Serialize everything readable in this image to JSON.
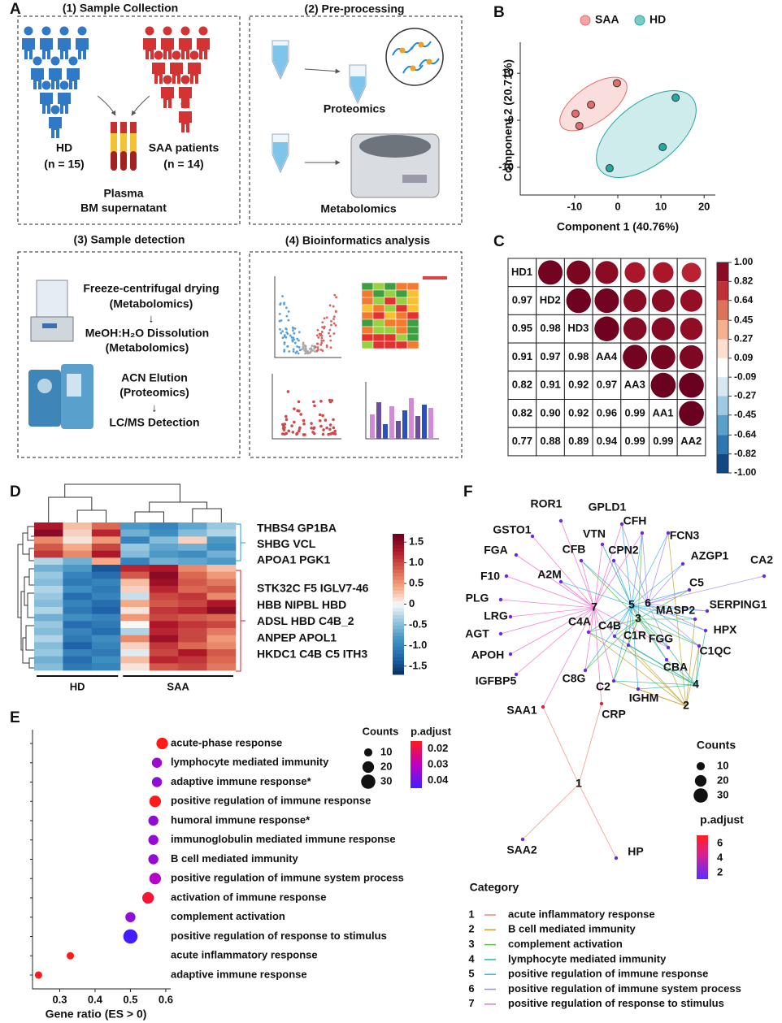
{
  "panel_letters": [
    "A",
    "B",
    "C",
    "D",
    "E",
    "F"
  ],
  "workflow": {
    "boxes": [
      {
        "title": "(1) Sample Collection",
        "texts": [
          "HD",
          "(n = 15)",
          "SAA patients",
          "(n = 14)",
          "Plasma",
          "BM supernatant"
        ]
      },
      {
        "title": "(2) Pre-processing",
        "texts": [
          "Proteomics",
          "Metabolomics"
        ]
      },
      {
        "title": "(3) Sample detection",
        "texts": [
          "Freeze-centrifugal drying",
          "(Metabolomics)",
          "↓",
          "MeOH:H₂O Dissolution",
          "(Metabolomics)",
          "ACN Elution",
          "(Proteomics)",
          "↓",
          "LC/MS Detection"
        ]
      },
      {
        "title": "(4) Bioinformatics analysis"
      }
    ]
  },
  "chart_data": [
    {
      "type": "scatter",
      "xlabel": "Component 1 (40.76%)",
      "ylabel": "Component 2 (20.71%)",
      "xlim": [
        -22.6,
        22.6
      ],
      "ylim": [
        -15.9,
        16.6
      ],
      "xticks": [
        -10,
        0,
        10,
        20
      ],
      "yticks": [
        -10,
        0,
        10
      ],
      "series": [
        {
          "name": "SAA",
          "color": "#e86b6b",
          "x": [
            -9.8,
            -8.9,
            -6.2,
            -0.2
          ],
          "values": [
            1.4,
            -1.2,
            3.3,
            7.9
          ]
        },
        {
          "name": "HD",
          "color": "#22a9a3",
          "x": [
            -1.9,
            10.4,
            13.4
          ],
          "values": [
            -10.2,
            -5.7,
            4.8
          ]
        }
      ]
    },
    {
      "type": "correlation",
      "labels": [
        "HD1",
        "HD2",
        "HD3",
        "AA4",
        "AA3",
        "AA1",
        "AA2"
      ],
      "values": [
        [
          0.97
        ],
        [
          0.95,
          0.98
        ],
        [
          0.91,
          0.97,
          0.98
        ],
        [
          0.82,
          0.91,
          0.92,
          0.97
        ],
        [
          0.82,
          0.9,
          0.92,
          0.96,
          0.99
        ],
        [
          0.77,
          0.88,
          0.89,
          0.94,
          0.99,
          0.99
        ]
      ],
      "value_labels": [
        [
          "0.97"
        ],
        [
          "0.95",
          "0.98"
        ],
        [
          "0.91",
          "0.97",
          "0.98"
        ],
        [
          "0.82",
          "0.91",
          "0.92",
          "0.97"
        ],
        [
          "0.82",
          "0.90",
          "0.92",
          "0.96",
          "0.99"
        ],
        [
          "0.77",
          "0.88",
          "0.89",
          "0.94",
          "0.99",
          "0.99"
        ]
      ],
      "clim": [
        -1,
        1
      ],
      "colors": [
        "#053061",
        "#2166ac",
        "#4393c3",
        "#92c5de",
        "#d1e5f0",
        "#ffffff",
        "#fddbc7",
        "#f4a582",
        "#d6604d",
        "#b2182b",
        "#67001f"
      ],
      "cticks": [
        {
          "value": 1,
          "label": "1.00"
        },
        0.82,
        0.64,
        0.45,
        0.27,
        0.09,
        -0.09,
        -0.27,
        -0.45,
        -0.64,
        -0.82,
        {
          "value": -1,
          "label": "-1.00"
        }
      ]
    },
    {
      "type": "heatmap",
      "groups": [
        "HD",
        "SAA"
      ],
      "group_sizes": [
        3,
        4
      ],
      "values": [
        [
          1.3,
          0.3,
          0.8,
          -0.8,
          -1.0,
          -0.7,
          -0.4
        ],
        [
          1.5,
          0.2,
          1.2,
          -0.6,
          -0.9,
          -0.5,
          -0.3
        ],
        [
          0.6,
          0.1,
          0.5,
          -1.0,
          -0.5,
          0.2,
          -0.8
        ],
        [
          0.9,
          0.4,
          1.0,
          -0.4,
          -0.7,
          -0.6,
          -0.9
        ],
        [
          1.1,
          0.6,
          1.3,
          -0.5,
          -0.8,
          -0.9,
          -0.6
        ],
        [
          -0.3,
          -0.6,
          0.4,
          -1.0,
          -0.6,
          -0.7,
          -0.8
        ],
        [
          -0.6,
          -0.8,
          -1.4,
          1.2,
          1.3,
          0.6,
          0.3
        ],
        [
          -0.4,
          -1.0,
          -1.2,
          0.9,
          1.5,
          0.8,
          0.5
        ],
        [
          -0.5,
          -1.1,
          -1.0,
          0.3,
          1.4,
          0.9,
          0.7
        ],
        [
          -0.3,
          -0.9,
          -1.1,
          0.2,
          1.2,
          0.8,
          0.9
        ],
        [
          -0.4,
          -1.2,
          -1.0,
          -0.2,
          1.0,
          1.1,
          0.6
        ],
        [
          -0.5,
          -1.0,
          -1.2,
          0.4,
          0.9,
          1.0,
          1.3
        ],
        [
          -0.3,
          -1.1,
          -1.3,
          0.1,
          1.1,
          1.2,
          1.5
        ],
        [
          -0.6,
          -0.9,
          -1.0,
          0.5,
          1.0,
          0.9,
          0.8
        ],
        [
          -0.4,
          -1.2,
          -1.1,
          0.0,
          1.3,
          1.1,
          1.0
        ],
        [
          -0.5,
          -1.0,
          -1.2,
          -0.3,
          1.2,
          1.0,
          0.7
        ],
        [
          -0.3,
          -1.1,
          -0.9,
          0.6,
          1.4,
          1.0,
          0.5
        ],
        [
          -0.5,
          -1.3,
          -1.0,
          0.2,
          1.1,
          0.8,
          0.6
        ],
        [
          -0.4,
          -1.0,
          -1.1,
          -0.1,
          1.0,
          1.3,
          0.9
        ],
        [
          -0.6,
          -1.2,
          -0.9,
          0.3,
          1.2,
          1.1,
          0.8
        ],
        [
          -0.5,
          -1.1,
          -1.0,
          0.1,
          0.9,
          1.0,
          0.7
        ]
      ],
      "clim": [
        -1.7,
        1.7
      ],
      "colors": [
        "#053061",
        "#2166ac",
        "#4393c3",
        "#92c5de",
        "#f7f7f7",
        "#f4a582",
        "#d6604d",
        "#b2182b",
        "#67001f"
      ],
      "cticks": [
        1.5,
        {
          "value": 1,
          "label": "1.0"
        },
        0.5,
        0,
        -0.5,
        {
          "value": -1,
          "label": "-1.0"
        },
        -1.5
      ],
      "gene_groups": [
        {
          "color": "#1aa3e8",
          "lines": [
            "THBS4 GP1BA",
            "SHBG VCL",
            "APOA1 PGK1"
          ]
        },
        {
          "color": "#e8191e",
          "lines": [
            "STK32C F5 IGLV7-46",
            "HBB NIPBL HBD",
            "ADSL HBD C4B_2",
            "ANPEP APOL1",
            "HKDC1 C4B C5 ITH3"
          ]
        }
      ]
    },
    {
      "type": "dot",
      "xlabel": "Gene ratio (ES > 0)",
      "categories": [
        "acute-phase response",
        "lymphocyte mediated immunity",
        "adaptive immune response*",
        "positive regulation of immune response",
        "humoral immune response*",
        "immunoglobulin mediated immune response",
        "B cell mediated immunity",
        "positive regulation of immune system process",
        "activation of immune response",
        "complement activation",
        "positive regulation of response to stimulus",
        "acute inflammatory response",
        "adaptive immune response"
      ],
      "values": [
        0.59,
        0.575,
        0.575,
        0.57,
        0.565,
        0.565,
        0.565,
        0.57,
        0.55,
        0.5,
        0.5,
        0.33,
        0.24
      ],
      "sizes": [
        20,
        15,
        15,
        20,
        15,
        15,
        15,
        20,
        20,
        15,
        30,
        8,
        8
      ],
      "p_adjust": [
        0.012,
        0.033,
        0.035,
        0.012,
        0.035,
        0.034,
        0.034,
        0.03,
        0.015,
        0.035,
        0.045,
        0.012,
        0.012
      ],
      "xlim": [
        0.223,
        0.614
      ],
      "xticks": [
        0.3,
        0.4,
        0.5,
        0.6
      ],
      "clim": [
        0.012,
        0.045
      ],
      "size_legend": {
        "title": "Counts",
        "values": [
          10,
          20,
          30
        ]
      },
      "color_legend": {
        "title": "p.adjust",
        "ticks": [
          0.02,
          0.03,
          0.04
        ]
      }
    }
  ],
  "network": {
    "nodes": [
      "ROR1",
      "GPLD1",
      "GSTO1",
      "CFH",
      "VTN",
      "FCN3",
      "FGA",
      "CFB",
      "CPN2",
      "AZGP1",
      "CA2",
      "A2M",
      "F10",
      "C5",
      "PLG",
      "MASP2",
      "SERPING1",
      "LRG",
      "AGT",
      "HPX",
      "FGG",
      "C1QC",
      "APOH",
      "C4A",
      "C4B",
      "C1R",
      "CBA",
      "IGFBP5",
      "C8G",
      "C2",
      "IGHM",
      "SAA1",
      "CRP",
      "SAA2",
      "HP"
    ],
    "category_title": "Category",
    "categories": [
      {
        "key": "1",
        "name": "acute inflammatory response",
        "color": "#f08878"
      },
      {
        "key": "2",
        "name": "B cell mediated immunity",
        "color": "#c8a030"
      },
      {
        "key": "3",
        "name": "complement activation",
        "color": "#5cc040"
      },
      {
        "key": "4",
        "name": "lymphocyte mediated immunity",
        "color": "#2cb896"
      },
      {
        "key": "5",
        "name": "positive regulation of immune response",
        "color": "#30b4e4"
      },
      {
        "key": "6",
        "name": "positive regulation of immune system process",
        "color": "#a888f0"
      },
      {
        "key": "7",
        "name": "positive regulation of response to stimulus",
        "color": "#f070c8"
      }
    ],
    "size_legend": {
      "title": "Counts",
      "values": [
        10,
        20,
        30
      ]
    },
    "color_legend": {
      "title": "p.adjust",
      "ticks": [
        6,
        4,
        2
      ]
    }
  }
}
